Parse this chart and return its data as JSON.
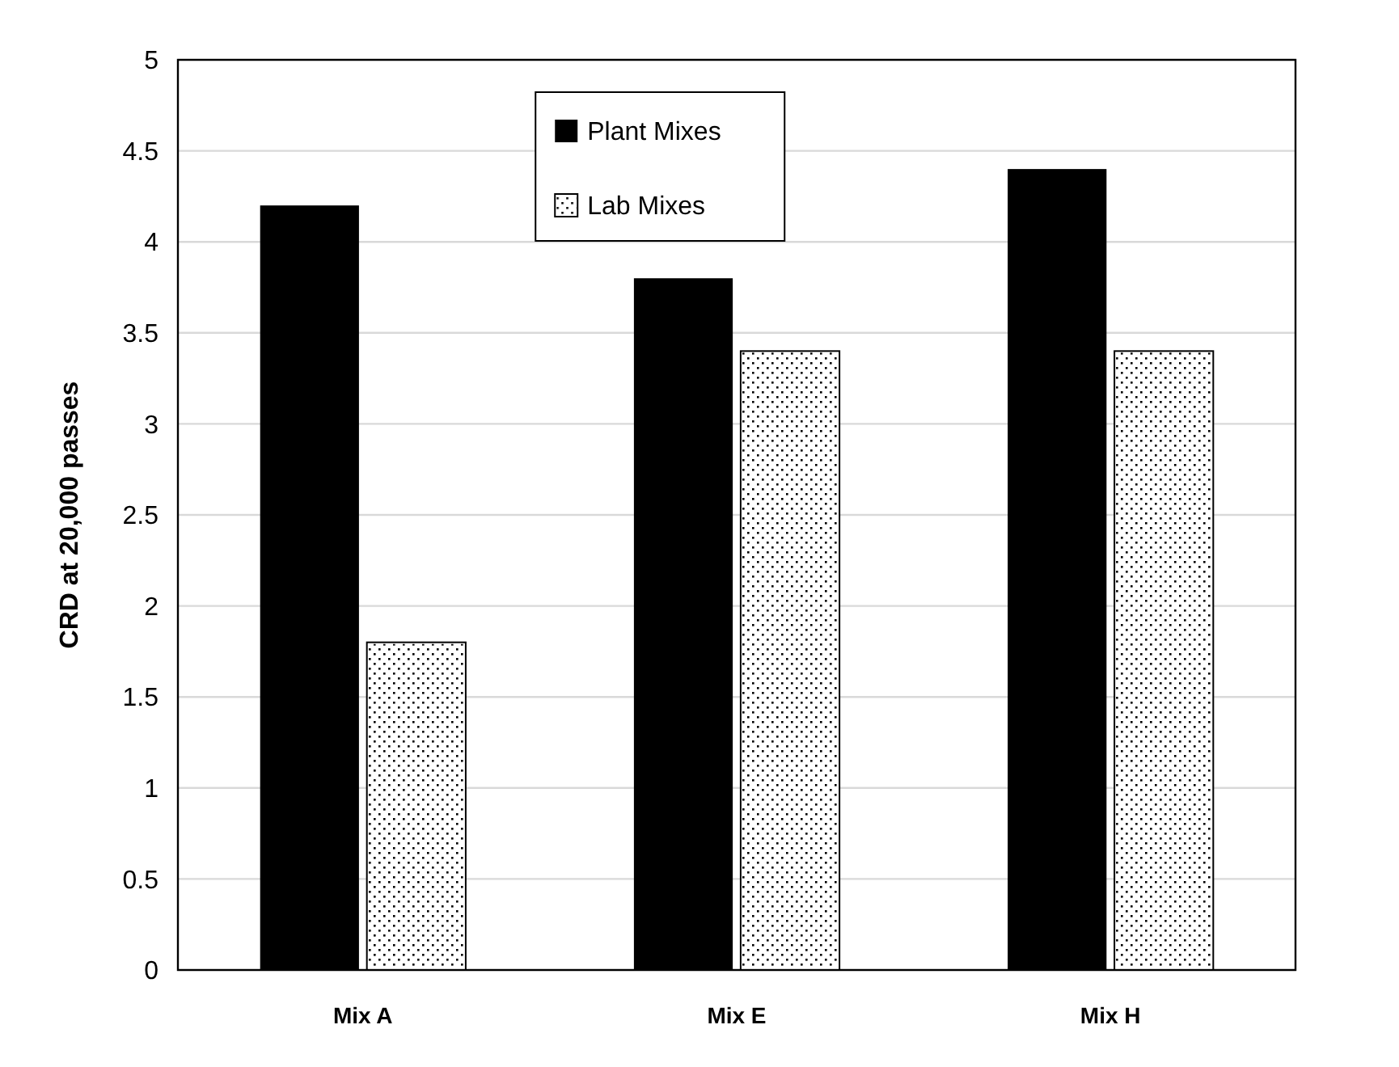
{
  "chart_data": {
    "type": "bar",
    "ylabel": "CRD at 20,000 passes",
    "categories": [
      "Mix A",
      "Mix E",
      "Mix H"
    ],
    "series": [
      {
        "name": "Plant Mixes",
        "color": "#000000",
        "values": [
          4.2,
          3.8,
          4.4
        ]
      },
      {
        "name": "Lab Mixes",
        "color": "#ffffff",
        "values": [
          1.8,
          3.4,
          3.4
        ]
      }
    ],
    "ylim": [
      0,
      5
    ],
    "yticks": [
      0,
      {
        "value": 0.5,
        "label": "0.5"
      },
      1,
      {
        "value": 1.5,
        "label": "1.5"
      },
      2,
      {
        "value": 2.5,
        "label": "2.5"
      },
      3,
      {
        "value": 3.5,
        "label": "3.5"
      },
      4,
      {
        "value": 4.5,
        "label": "4.5"
      },
      5
    ],
    "grid": "y",
    "legend": "top"
  }
}
